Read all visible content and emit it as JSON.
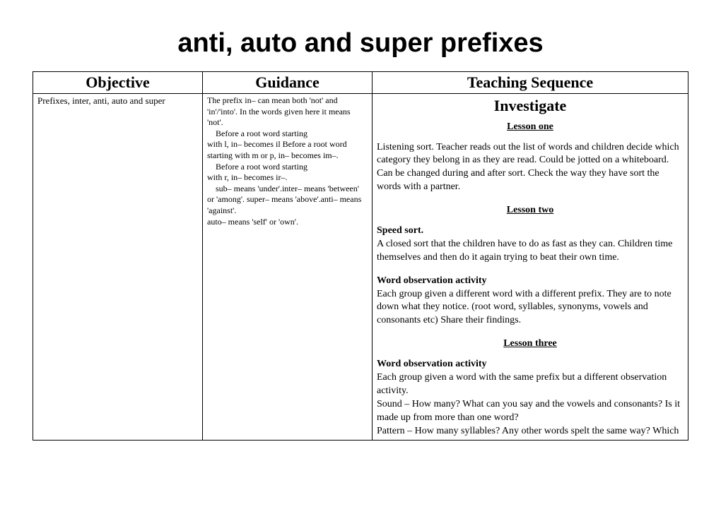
{
  "title": "anti, auto and super prefixes",
  "headers": {
    "objective": "Objective",
    "guidance": "Guidance",
    "teaching": "Teaching Sequence"
  },
  "objective_text": "Prefixes, inter, anti, auto and super",
  "guidance": {
    "p1": "The prefix in– can mean both 'not' and 'in'/'into'. In the words given here it means 'not'.",
    "p2a": "Before a root word starting",
    "p2b": "with l, in– becomes il Before a root word starting with m or p, in– becomes   im–.",
    "p3a": "Before a root word   starting",
    "p3b": "with r, in– becomes ir–.",
    "p4a": "sub– means 'under'.inter– means 'between' or 'among'. super– means 'above'.anti– means 'against'.",
    "p4b": "auto– means 'self' or 'own'."
  },
  "teaching": {
    "investigate": "Investigate",
    "lesson1_heading": "Lesson one",
    "lesson1_text": "Listening sort. Teacher reads out the list of words and children decide which category they belong in as they are read. Could be jotted on a whiteboard. Can be changed during and after sort. Check the way they have sort the words with a partner.",
    "lesson2_heading": "Lesson two",
    "speed_sort_title": "Speed sort.",
    "speed_sort_text": "A closed sort that the children have to do as fast as they can. Children time themselves and then do it again trying to beat their own time.",
    "word_obs1_title": "Word observation activity",
    "word_obs1_text": "Each group given a different word with a different prefix. They are to note down what they notice. (root word, syllables, synonyms, vowels and consonants etc) Share their findings.",
    "lesson3_heading": "Lesson three",
    "word_obs2_title": "Word observation activity",
    "word_obs2_text": "Each group given a word with the same prefix but a different observation activity.",
    "sound_text": "Sound – How many? What can you say and the vowels and consonants? Is it made up from more than one word?",
    "pattern_text": "Pattern – How many syllables? Any other words spelt the same way? Which"
  },
  "colors": {
    "text": "#000000",
    "background": "#ffffff",
    "border": "#000000"
  },
  "fonts": {
    "title_family": "Arial",
    "title_size_pt": 28,
    "header_size_pt": 16,
    "body_size_pt": 11,
    "guidance_size_pt": 9
  }
}
